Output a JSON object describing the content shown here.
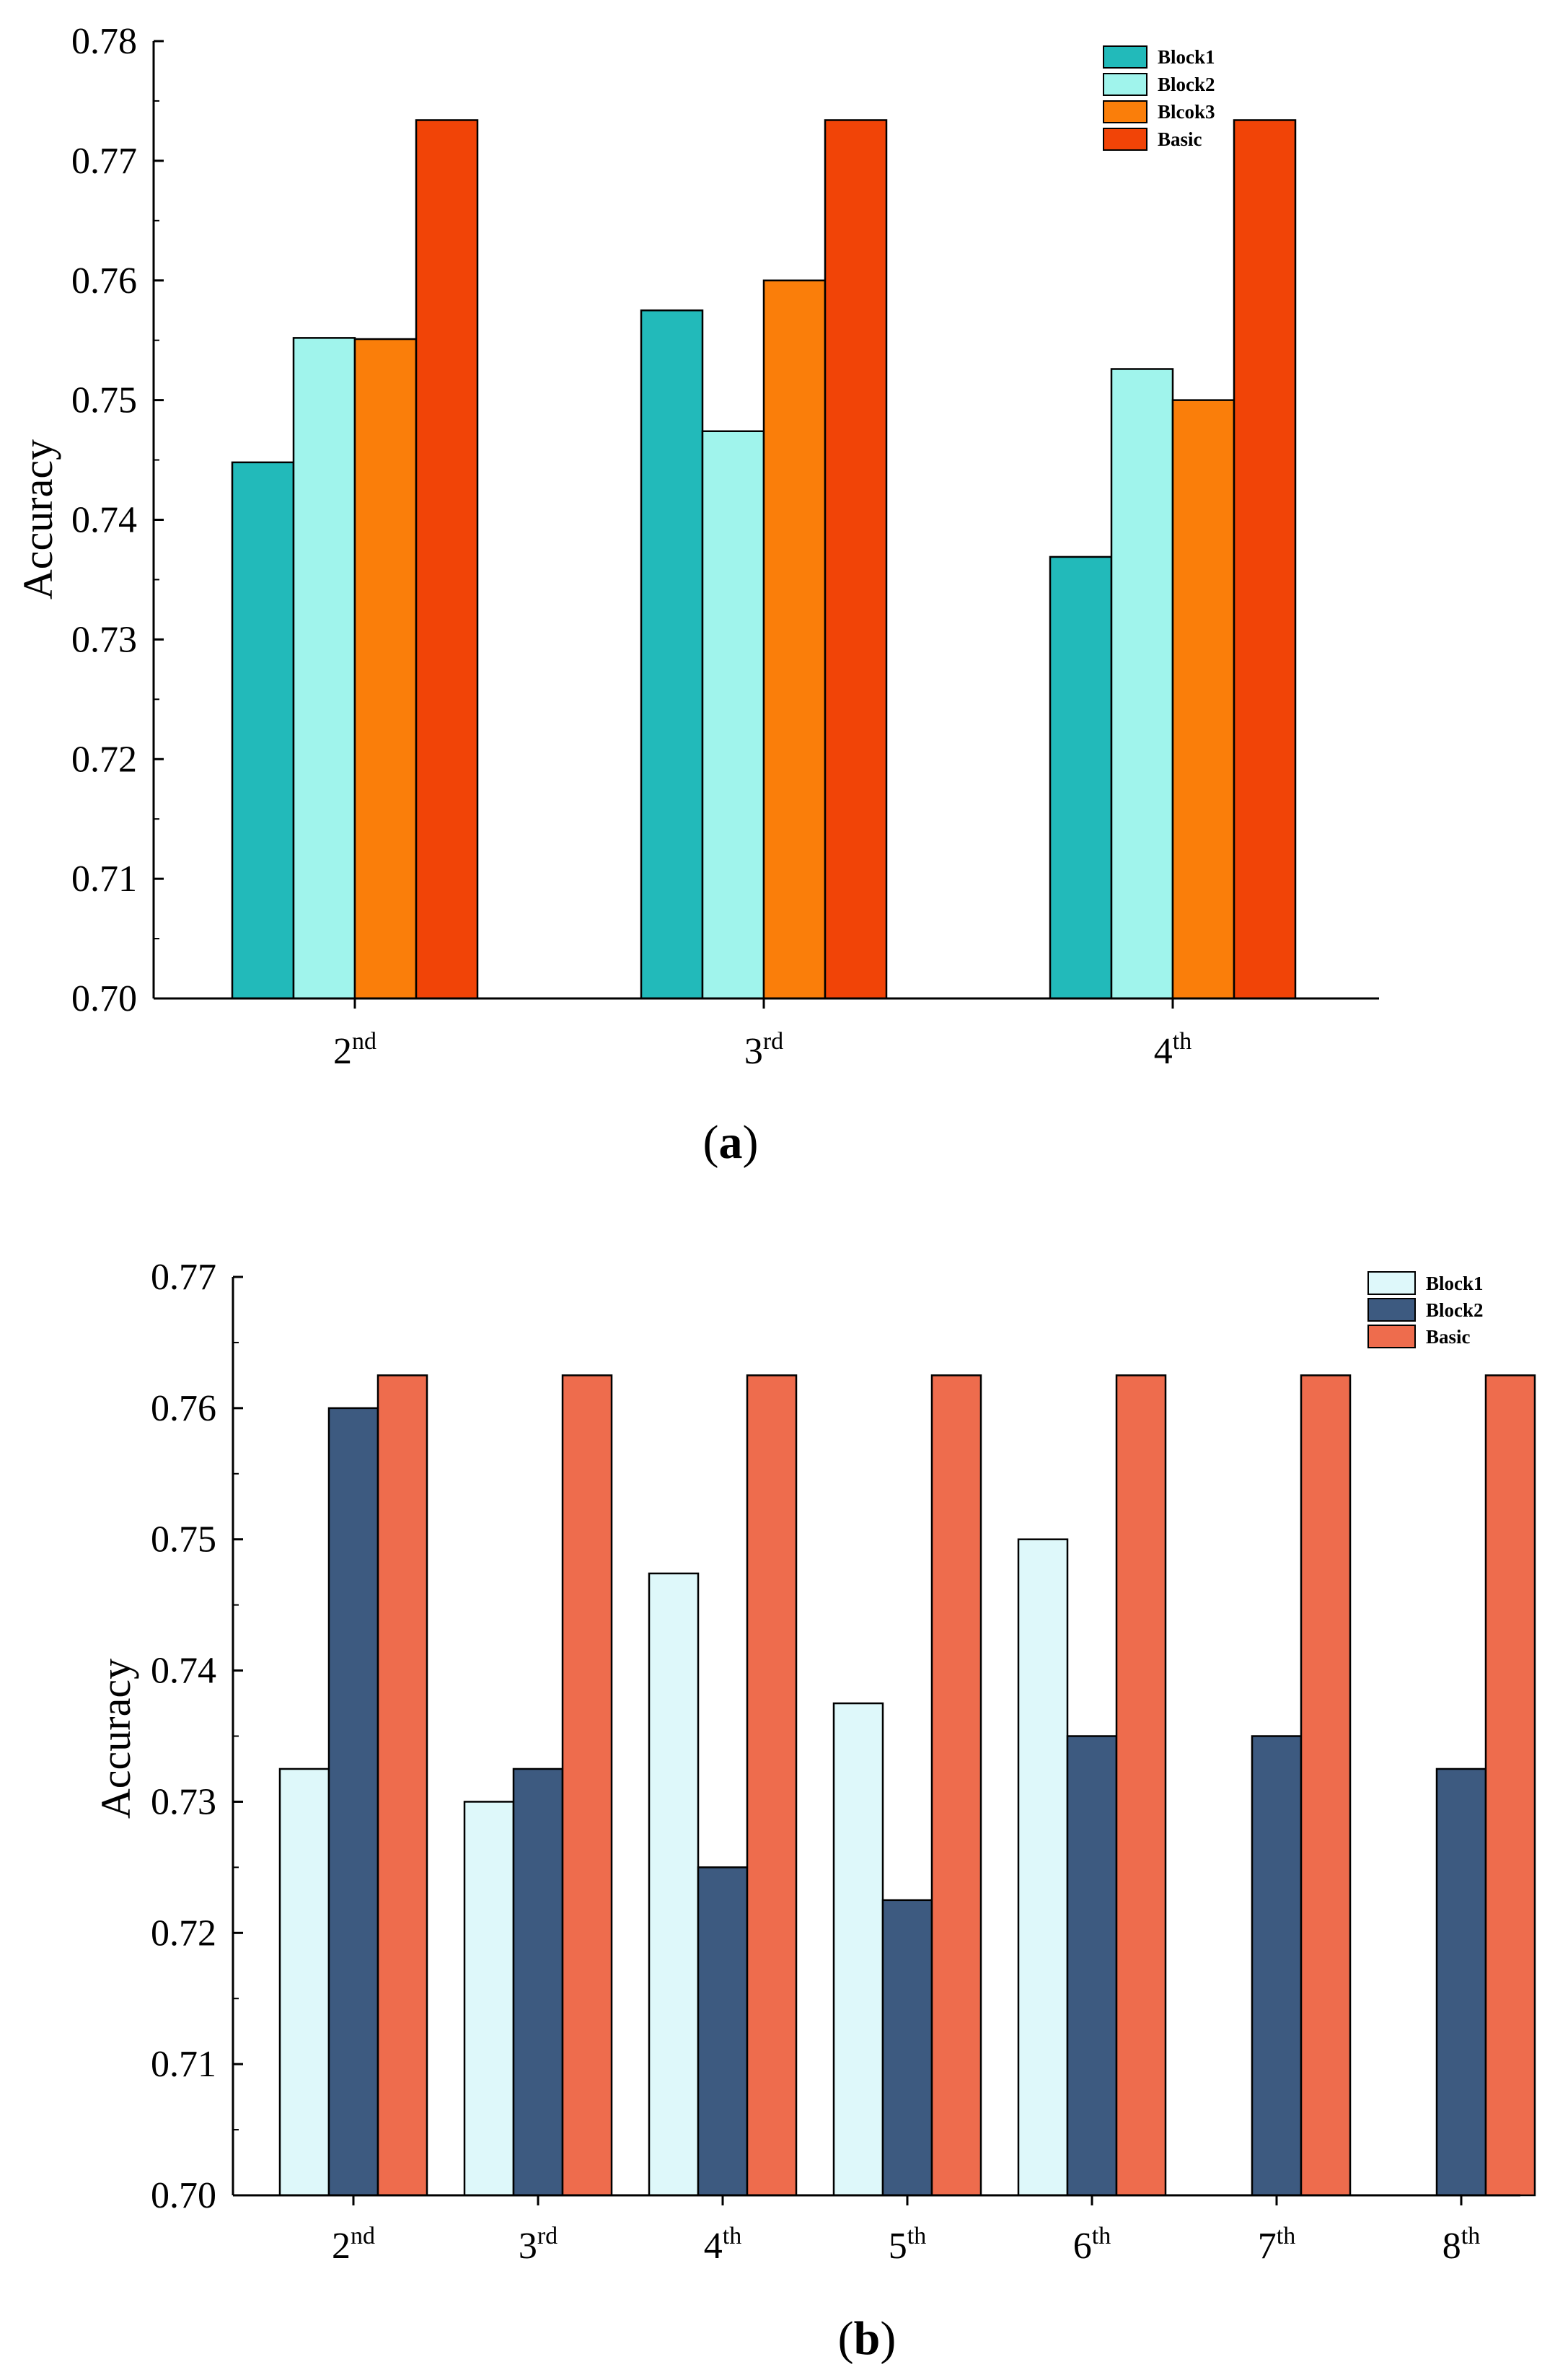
{
  "chart_data": [
    {
      "type": "bar",
      "panel": "a",
      "ylabel": "Accuracy",
      "xlabel": "",
      "ylim": [
        0.7,
        0.78
      ],
      "yticks": [
        "0.70",
        "0.71",
        "0.72",
        "0.73",
        "0.74",
        "0.75",
        "0.76",
        "0.77",
        "0.78"
      ],
      "categories": [
        {
          "base": "2",
          "sup": "nd"
        },
        {
          "base": "3",
          "sup": "rd"
        },
        {
          "base": "4",
          "sup": "th"
        }
      ],
      "series": [
        {
          "name": "Block1",
          "color": "#22BABA",
          "values": [
            0.7448,
            0.7575,
            0.7369
          ]
        },
        {
          "name": "Block2",
          "color": "#A0F4EC",
          "values": [
            0.7552,
            0.7474,
            0.7526
          ]
        },
        {
          "name": "Blcok3",
          "color": "#FA7E0A",
          "values": [
            0.7551,
            0.76,
            0.75
          ]
        },
        {
          "name": "Basic",
          "color": "#F14407",
          "values": [
            0.7734,
            0.7734,
            0.7734
          ]
        }
      ],
      "legend_position": "top-right"
    },
    {
      "type": "bar",
      "panel": "b",
      "ylabel": "Accuracy",
      "xlabel": "",
      "ylim": [
        0.7,
        0.77
      ],
      "yticks": [
        "0.70",
        "0.71",
        "0.72",
        "0.73",
        "0.74",
        "0.75",
        "0.76",
        "0.77"
      ],
      "categories": [
        {
          "base": "2",
          "sup": "nd"
        },
        {
          "base": "3",
          "sup": "rd"
        },
        {
          "base": "4",
          "sup": "th"
        },
        {
          "base": "5",
          "sup": "th"
        },
        {
          "base": "6",
          "sup": "th"
        },
        {
          "base": "7",
          "sup": "th"
        },
        {
          "base": "8",
          "sup": "th"
        }
      ],
      "series": [
        {
          "name": "Block1",
          "color": "#DEF8FA",
          "values": [
            0.7325,
            0.73,
            0.7474,
            0.7375,
            0.75,
            null,
            null
          ]
        },
        {
          "name": "Block2",
          "color": "#3D5A80",
          "values": [
            0.76,
            0.7325,
            0.725,
            0.7225,
            0.735,
            0.735,
            0.7325
          ]
        },
        {
          "name": "Basic",
          "color": "#EE6C4D",
          "values": [
            0.7625,
            0.7625,
            0.7625,
            0.7625,
            0.7625,
            0.7625,
            0.7625
          ]
        }
      ],
      "legend_position": "top-right"
    }
  ],
  "panel_labels": {
    "a": {
      "open": "(",
      "letter": "a",
      "close": ")"
    },
    "b": {
      "open": "(",
      "letter": "b",
      "close": ")"
    }
  }
}
